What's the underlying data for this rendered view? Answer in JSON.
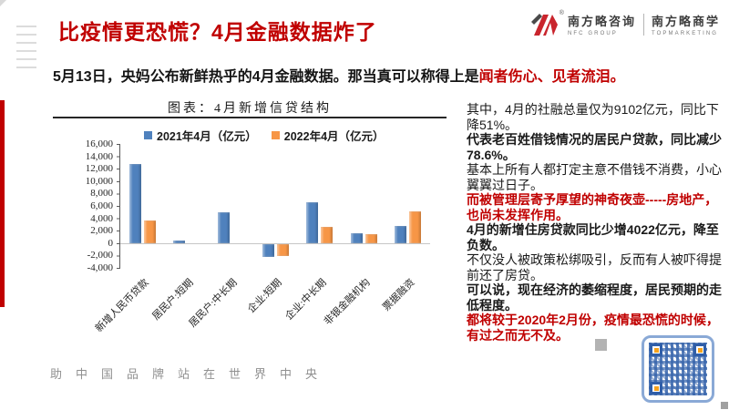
{
  "slide": {
    "title": "比疫情更恐慌？4月金融数据炸了",
    "subtitle": {
      "black": "5月13日，央妈公布新鲜热乎的4月金融数据。那当真可以称得上是",
      "red": "闻者伤心、见者流泪。"
    },
    "footer_motto": "助中国品牌站在世界中央"
  },
  "logo": {
    "registered": "®",
    "brand_consulting_cn": "南方略咨询",
    "brand_consulting_en": "NFC GROUP",
    "brand_school_cn": "南方略商学",
    "brand_school_en": "TOPMARKETING"
  },
  "chart_data": {
    "type": "bar",
    "title": "图表：4月新增信贷结构",
    "categories": [
      "新增人民币贷款",
      "居民户:短期",
      "居民户:中长期",
      "企业:短期",
      "企业:中长期",
      "非银金融机构",
      "票据融资"
    ],
    "series": [
      {
        "name": "2021年4月（亿元）",
        "color": "#4f81bd",
        "values": [
          12800,
          365,
          4918,
          -2147,
          6605,
          1532,
          2711
        ]
      },
      {
        "name": "2022年4月（亿元）",
        "color": "#f79646",
        "values": [
          3616,
          0,
          0,
          -1948,
          2652,
          1379,
          5148
        ]
      }
    ],
    "xlabel": "",
    "ylabel": "",
    "ylim": [
      -4000,
      16000
    ],
    "ytick_step": 2000,
    "yticks": [
      "16,000",
      "14,000",
      "12,000",
      "10,000",
      "8,000",
      "6,000",
      "4,000",
      "2,000",
      "0",
      "-2,000",
      "-4,000"
    ],
    "legend_position": "top",
    "grid": false
  },
  "commentary": {
    "paragraphs": [
      {
        "text": "其中，4月的社融总量仅为9102亿元，同比下降51%。",
        "style": "normal"
      },
      {
        "text": "代表老百姓借钱情况的居民户贷款，同比减少78.6%。",
        "style": "bold"
      },
      {
        "text": "基本上所有人都打定主意不借钱不消费，小心翼翼过日子。",
        "style": "normal"
      },
      {
        "text": "而被管理层寄予厚望的神奇夜壶-----房地产，也尚未发挥作用。",
        "style": "red-bold"
      },
      {
        "text": "4月的新增住房贷款同比少增4022亿元，降至负数。",
        "style": "bold"
      },
      {
        "text": "不仅没人被政策松绑吸引，反而有人被吓得提前还了房贷。",
        "style": "normal"
      },
      {
        "text": "可以说，现在经济的萎缩程度，居民预期的走低程度。",
        "style": "bold"
      },
      {
        "text": "都将较于2020年2月份，疫情最恐慌的时候，有过之而无不及。",
        "style": "red-bold"
      }
    ]
  },
  "colors": {
    "accent_red": "#c00000",
    "bar_blue": "#4f81bd",
    "bar_orange": "#f79646",
    "qr_blue": "#2f5ea8",
    "qr_frame": "#8aa9d6",
    "qr_finder_orange": "#f6a21d"
  }
}
